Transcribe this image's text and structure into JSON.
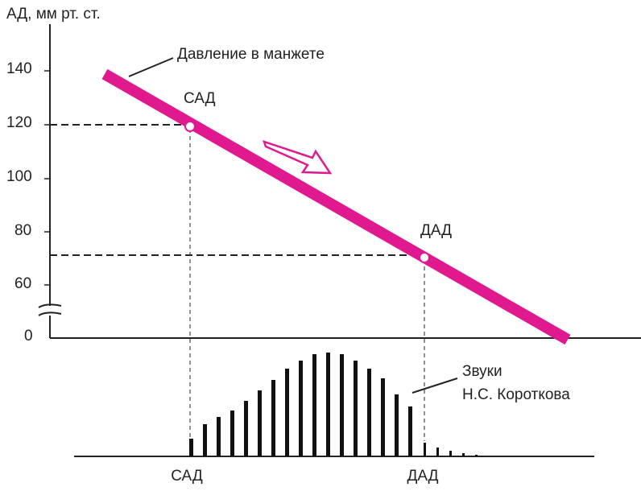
{
  "axis": {
    "title": "АД, мм рт. ст.",
    "ticks": [
      "140",
      "120",
      "100",
      "80",
      "60",
      "0"
    ]
  },
  "cuff_label": "Давление в манжете",
  "points": {
    "systolic": "САД",
    "diastolic": "ДАД"
  },
  "sounds_label": {
    "line1": "Звуки",
    "line2": "Н.С. Короткова"
  },
  "bottom_labels": {
    "systolic": "САД",
    "diastolic": "ДАД"
  }
}
